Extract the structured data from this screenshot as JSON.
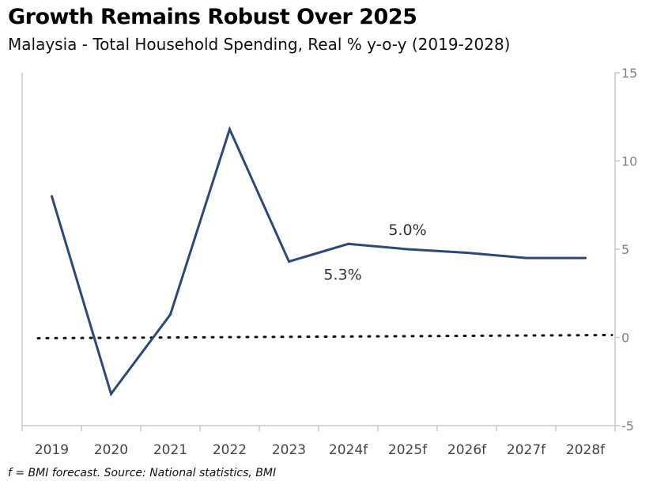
{
  "title": "Growth Remains Robust Over 2025",
  "subtitle": "Malaysia - Total Household Spending, Real % y-o-y (2019-2028)",
  "footnote": "f = BMI forecast. Source: National statistics, BMI",
  "chart_data": {
    "type": "line",
    "categories": [
      "2019",
      "2020",
      "2021",
      "2022",
      "2023",
      "2024f",
      "2025f",
      "2026f",
      "2027f",
      "2028f"
    ],
    "series": [
      {
        "values": [
          8.0,
          -3.2,
          1.3,
          11.8,
          4.3,
          5.3,
          5.0,
          4.8,
          4.5,
          4.5
        ],
        "color": "#2b4a7a"
      }
    ],
    "reference_line": {
      "value": 0,
      "style": "dotted"
    },
    "ylim": [
      -5,
      15
    ],
    "yticks": [
      -5,
      0,
      5,
      10,
      15
    ],
    "y_axis_position": "right",
    "grid": false,
    "annotations": [
      {
        "text": "5.3%",
        "category": "2024f"
      },
      {
        "text": "5.0%",
        "category": "2025f"
      }
    ]
  }
}
